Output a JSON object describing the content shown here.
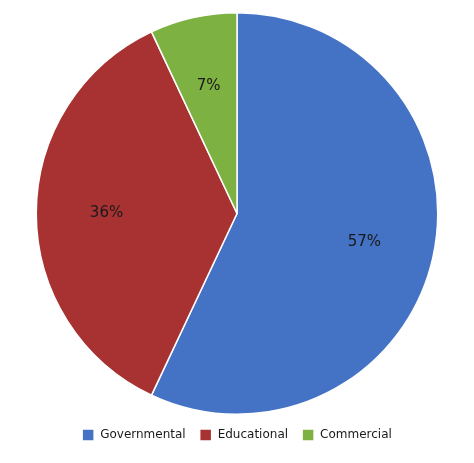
{
  "chart_data": {
    "type": "pie",
    "categories": [
      "Governmental",
      "Educational",
      "Commercial"
    ],
    "values": [
      57,
      36,
      7
    ],
    "value_labels": [
      "57%",
      "36%",
      "7%"
    ],
    "colors": [
      "#4472C4",
      "#A83232",
      "#7DB142"
    ],
    "data_labels": true,
    "legend": "bottom"
  }
}
